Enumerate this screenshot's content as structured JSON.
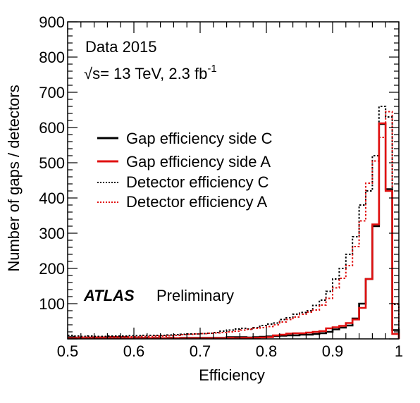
{
  "chart_data": {
    "type": "histogram",
    "xlabel": "Efficiency",
    "ylabel": "Number of gaps / detectors",
    "xlim": [
      0.5,
      1.0
    ],
    "ylim": [
      0,
      900
    ],
    "bin_width": 0.01,
    "x_ticks": [
      "0.5",
      "0.6",
      "0.7",
      "0.8",
      "0.9",
      "1"
    ],
    "y_ticks": [
      "100",
      "200",
      "300",
      "400",
      "500",
      "600",
      "700",
      "800",
      "900"
    ],
    "annotations": {
      "data_label": "Data 2015",
      "energy_sqrt": "√s",
      "energy_rest": "= 13 TeV,  2.3 fb",
      "energy_exp": "-1",
      "atlas": "ATLAS",
      "preliminary": "Preliminary"
    },
    "legend": {
      "placement": "middle-left",
      "entries": [
        "Gap efficiency side C",
        "Gap efficiency  side A",
        "Detector efficiency C",
        "Detector efficiency A"
      ]
    },
    "colors": {
      "C": "#000000",
      "A": "#e01010"
    },
    "series": [
      {
        "name": "Gap efficiency side C",
        "style": "solid",
        "color": "#000000",
        "values": [
          5,
          3,
          2,
          3,
          2,
          2,
          3,
          3,
          3,
          2,
          3,
          3,
          2,
          3,
          2,
          3,
          2,
          3,
          3,
          3,
          3,
          3,
          3,
          3,
          5,
          5,
          5,
          4,
          5,
          6,
          7,
          8,
          9,
          10,
          10,
          12,
          12,
          14,
          16,
          20,
          27,
          32,
          38,
          58,
          100,
          170,
          320,
          610,
          425,
          25
        ]
      },
      {
        "name": "Gap efficiency  side A",
        "style": "solid",
        "color": "#e01010",
        "values": [
          2,
          2,
          2,
          2,
          2,
          2,
          2,
          2,
          2,
          2,
          2,
          2,
          2,
          2,
          2,
          2,
          2,
          2,
          2,
          2,
          2,
          2,
          2,
          2,
          3,
          2,
          3,
          3,
          3,
          4,
          5,
          10,
          12,
          15,
          16,
          16,
          18,
          20,
          22,
          30,
          33,
          37,
          45,
          55,
          88,
          170,
          325,
          612,
          420,
          14
        ]
      },
      {
        "name": "Detector efficiency C",
        "style": "dotted",
        "color": "#000000",
        "values": [
          10,
          8,
          7,
          8,
          7,
          7,
          8,
          8,
          8,
          9,
          9,
          10,
          10,
          10,
          10,
          11,
          12,
          13,
          14,
          14,
          15,
          16,
          18,
          22,
          25,
          28,
          30,
          28,
          32,
          38,
          42,
          45,
          55,
          60,
          70,
          75,
          80,
          95,
          110,
          135,
          170,
          200,
          240,
          290,
          380,
          420,
          520,
          660,
          630,
          98
        ]
      },
      {
        "name": "Detector efficiency A",
        "style": "dotted",
        "color": "#e01010",
        "values": [
          5,
          5,
          5,
          5,
          5,
          5,
          6,
          6,
          6,
          6,
          6,
          7,
          7,
          8,
          8,
          9,
          10,
          12,
          13,
          14,
          15,
          16,
          17,
          18,
          20,
          22,
          25,
          27,
          30,
          32,
          35,
          40,
          48,
          55,
          62,
          70,
          76,
          82,
          96,
          115,
          145,
          172,
          208,
          262,
          335,
          442,
          505,
          572,
          645,
          100
        ]
      }
    ]
  }
}
